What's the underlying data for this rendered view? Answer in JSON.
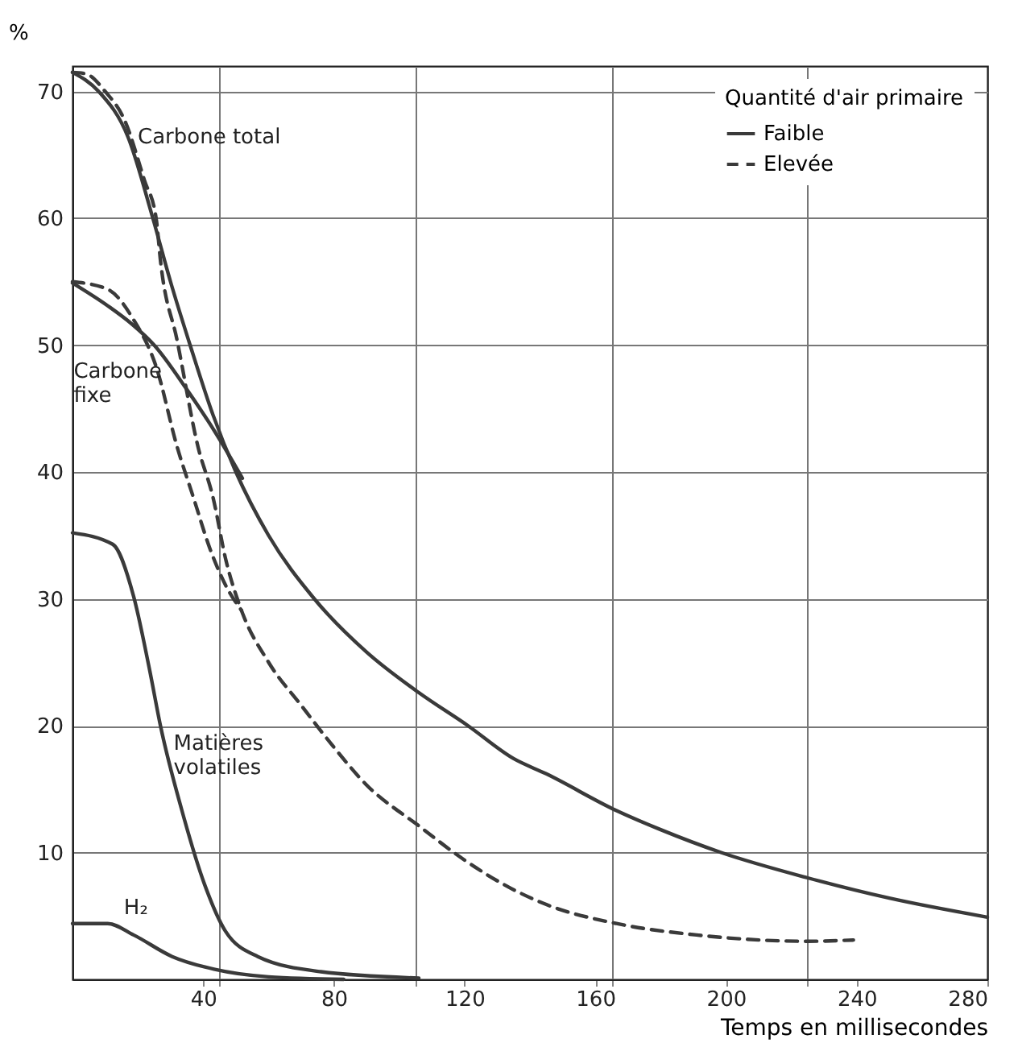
{
  "chart_data": {
    "type": "line",
    "ylabel": "%",
    "xlabel": "Temps en millisecondes",
    "legend_title": "Quantité d'air primaire",
    "xlim": [
      0,
      280
    ],
    "ylim": [
      0,
      72
    ],
    "xticks": [
      {
        "value": 45,
        "label": null
      },
      40,
      80,
      {
        "value": 105,
        "label": null
      },
      120,
      160,
      {
        "value": 165,
        "label": null
      },
      200,
      {
        "value": 225,
        "label": null
      },
      240,
      280
    ],
    "yticks": [
      10,
      20,
      30,
      40,
      50,
      60,
      70
    ],
    "grid": true,
    "legend": "top right",
    "marker": "none",
    "series": [
      {
        "name": "Faible",
        "color": "#3a3a3a",
        "line_style": "solid",
        "x": [
          0,
          8,
          17,
          24.6,
          30,
          36,
          43,
          50,
          60,
          74,
          90,
          106,
          121,
          135,
          145,
          166.5,
          180,
          198.5,
          225,
          250,
          280
        ],
        "values": [
          71.5,
          70,
          66.4,
          60,
          55,
          50,
          44.5,
          40,
          35,
          30,
          25.8,
          22.6,
          20,
          17.4,
          16.2,
          13.3,
          11.8,
          10,
          8,
          6.4,
          4.9
        ]
      },
      {
        "name": "Elevée",
        "color": "#3a3a3a",
        "line_style": "dashed",
        "x": [
          0,
          4,
          10,
          16,
          22,
          25.6,
          27,
          32,
          38.4,
          43,
          47,
          51.7,
          60,
          70,
          80,
          89.7,
          106,
          120,
          134,
          145,
          166.5,
          191,
          225,
          239
        ],
        "values": [
          71.5,
          71.4,
          70,
          67.7,
          63,
          60,
          56.5,
          50.4,
          42,
          38,
          33,
          29.1,
          25,
          21.6,
          18.3,
          15.4,
          12.1,
          9.4,
          7.2,
          5.9,
          4.4,
          3.5,
          3,
          3.1
        ]
      },
      {
        "color": "#3a3a3a",
        "line_style": "solid",
        "x": [
          0,
          10.8,
          18,
          25,
          35,
          44,
          52
        ],
        "values": [
          54.9,
          53.1,
          51.7,
          50,
          46.5,
          43,
          39.5
        ]
      },
      {
        "color": "#3a3a3a",
        "line_style": "dashed",
        "x": [
          0,
          10.8,
          18.7,
          25.6,
          32,
          37,
          42,
          47,
          51.7
        ],
        "values": [
          55,
          54.4,
          52,
          48.3,
          42,
          38,
          34,
          31,
          29.1
        ]
      },
      {
        "color": "#3a3a3a",
        "line_style": "solid",
        "x": [
          0,
          12.3,
          18.7,
          23.6,
          27,
          33.5,
          40.4,
          46.8,
          56.7,
          76,
          106
        ],
        "values": [
          35.2,
          34.3,
          30.2,
          24.4,
          19.9,
          13.3,
          7.5,
          3.8,
          1.8,
          0.6,
          0.1
        ]
      },
      {
        "color": "#3a3a3a",
        "line_style": "solid",
        "x": [
          0,
          10.8,
          18.7,
          30.5,
          43.3,
          60,
          83
        ],
        "values": [
          4.4,
          4.4,
          3.5,
          1.8,
          0.8,
          0.2,
          0
        ]
      }
    ],
    "annotations": [
      {
        "text": "Carbone total",
        "x": 17,
        "y": 66.4
      },
      {
        "text": "Carbone fixe",
        "x": 25,
        "y": 50
      },
      {
        "text": "Matières volatiles",
        "x": 27,
        "y": 19.9
      },
      {
        "text": "H₂",
        "x": 18.7,
        "y": 3.5
      }
    ]
  }
}
